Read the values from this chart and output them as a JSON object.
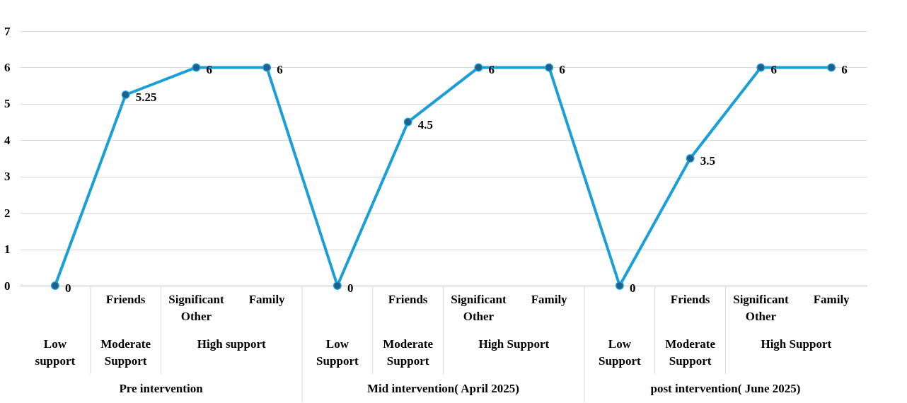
{
  "chart_data": {
    "type": "line",
    "categories": [
      null,
      "Friends",
      "Significant Other",
      "Family",
      null,
      "Friends",
      "Significant Other",
      "Family",
      null,
      "Friends",
      "Significant Other",
      "Family"
    ],
    "series": [
      {
        "color": "#1a9fd9",
        "values": [
          0,
          5.25,
          6,
          6,
          0,
          4.5,
          6,
          6,
          0,
          3.5,
          6,
          6
        ]
      }
    ],
    "ylim": [
      0,
      7
    ],
    "yticks": [
      0,
      1,
      2,
      3,
      4,
      5,
      6,
      7
    ],
    "grid": "y",
    "marker": "circle",
    "line_style": "solid",
    "data_labels": true,
    "annotations": [
      "Low support",
      "Moderate Support",
      "High support",
      "Low Support",
      "Moderate Support",
      "High Support",
      "Low Support",
      "Moderate Support",
      "High Support",
      "Pre intervention",
      "Mid intervention( April 2025)",
      "post  intervention( June 2025)"
    ]
  }
}
